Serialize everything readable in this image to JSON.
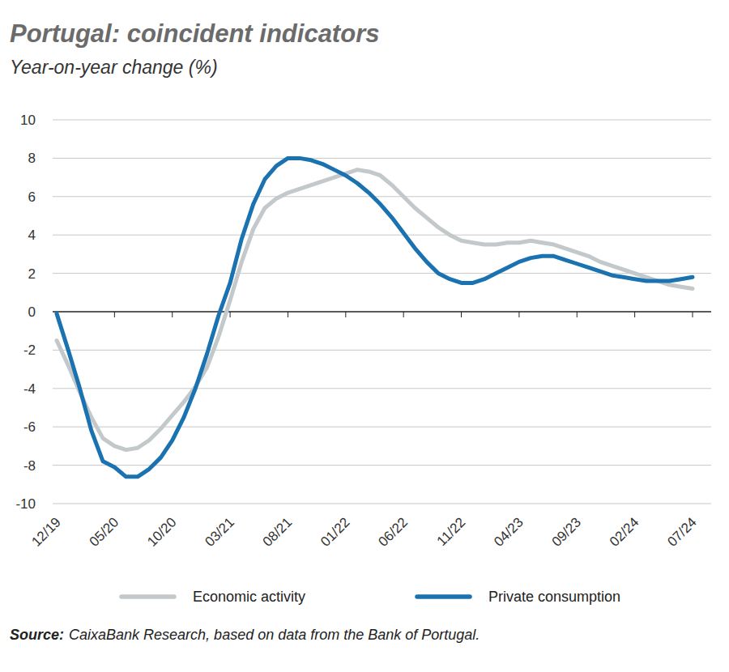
{
  "chart_data": {
    "type": "line",
    "title": "Portugal: coincident indicators",
    "subtitle": "Year-on-year change (%)",
    "categories": [
      "12/19",
      null,
      null,
      null,
      null,
      "05/20",
      null,
      null,
      null,
      null,
      "10/20",
      null,
      null,
      null,
      null,
      "03/21",
      null,
      null,
      null,
      null,
      "08/21",
      null,
      null,
      null,
      null,
      "01/22",
      null,
      null,
      null,
      null,
      "06/22",
      null,
      null,
      null,
      null,
      "11/22",
      null,
      null,
      null,
      null,
      "04/23",
      null,
      null,
      null,
      null,
      "09/23",
      null,
      null,
      null,
      null,
      "02/24",
      null,
      null,
      null,
      null,
      "07/24"
    ],
    "series": [
      {
        "name": "Economic activity",
        "color": "#c3c8cb",
        "values": [
          -1.5,
          -2.8,
          -4.2,
          -5.5,
          -6.6,
          -7.0,
          -7.2,
          -7.1,
          -6.7,
          -6.1,
          -5.4,
          -4.7,
          -3.9,
          -2.9,
          -1.3,
          0.6,
          2.6,
          4.3,
          5.4,
          5.9,
          6.2,
          6.4,
          6.6,
          6.8,
          7.0,
          7.2,
          7.4,
          7.3,
          7.1,
          6.6,
          6.0,
          5.4,
          4.9,
          4.4,
          4.0,
          3.7,
          3.6,
          3.5,
          3.5,
          3.6,
          3.6,
          3.7,
          3.6,
          3.5,
          3.3,
          3.1,
          2.9,
          2.6,
          2.4,
          2.2,
          2.0,
          1.8,
          1.6,
          1.4,
          1.3,
          1.2
        ]
      },
      {
        "name": "Private consumption",
        "color": "#1b72b0",
        "values": [
          -0.1,
          -2.0,
          -4.0,
          -6.2,
          -7.8,
          -8.1,
          -8.6,
          -8.6,
          -8.2,
          -7.6,
          -6.7,
          -5.5,
          -4.0,
          -2.2,
          -0.2,
          1.5,
          3.8,
          5.6,
          6.9,
          7.6,
          8.0,
          8.0,
          7.9,
          7.7,
          7.4,
          7.1,
          6.7,
          6.2,
          5.6,
          4.9,
          4.1,
          3.3,
          2.6,
          2.0,
          1.7,
          1.5,
          1.5,
          1.7,
          2.0,
          2.3,
          2.6,
          2.8,
          2.9,
          2.9,
          2.7,
          2.5,
          2.3,
          2.1,
          1.9,
          1.8,
          1.7,
          1.6,
          1.6,
          1.6,
          1.7,
          1.8
        ]
      }
    ],
    "ylim": [
      -10,
      10
    ],
    "yticks": [
      -10,
      -8,
      -6,
      -4,
      -2,
      0,
      2,
      4,
      6,
      8,
      10
    ],
    "grid": true,
    "legend": "bottom",
    "source_label": "Source:",
    "source": "CaixaBank Research, based on data from the Bank of Portugal."
  }
}
